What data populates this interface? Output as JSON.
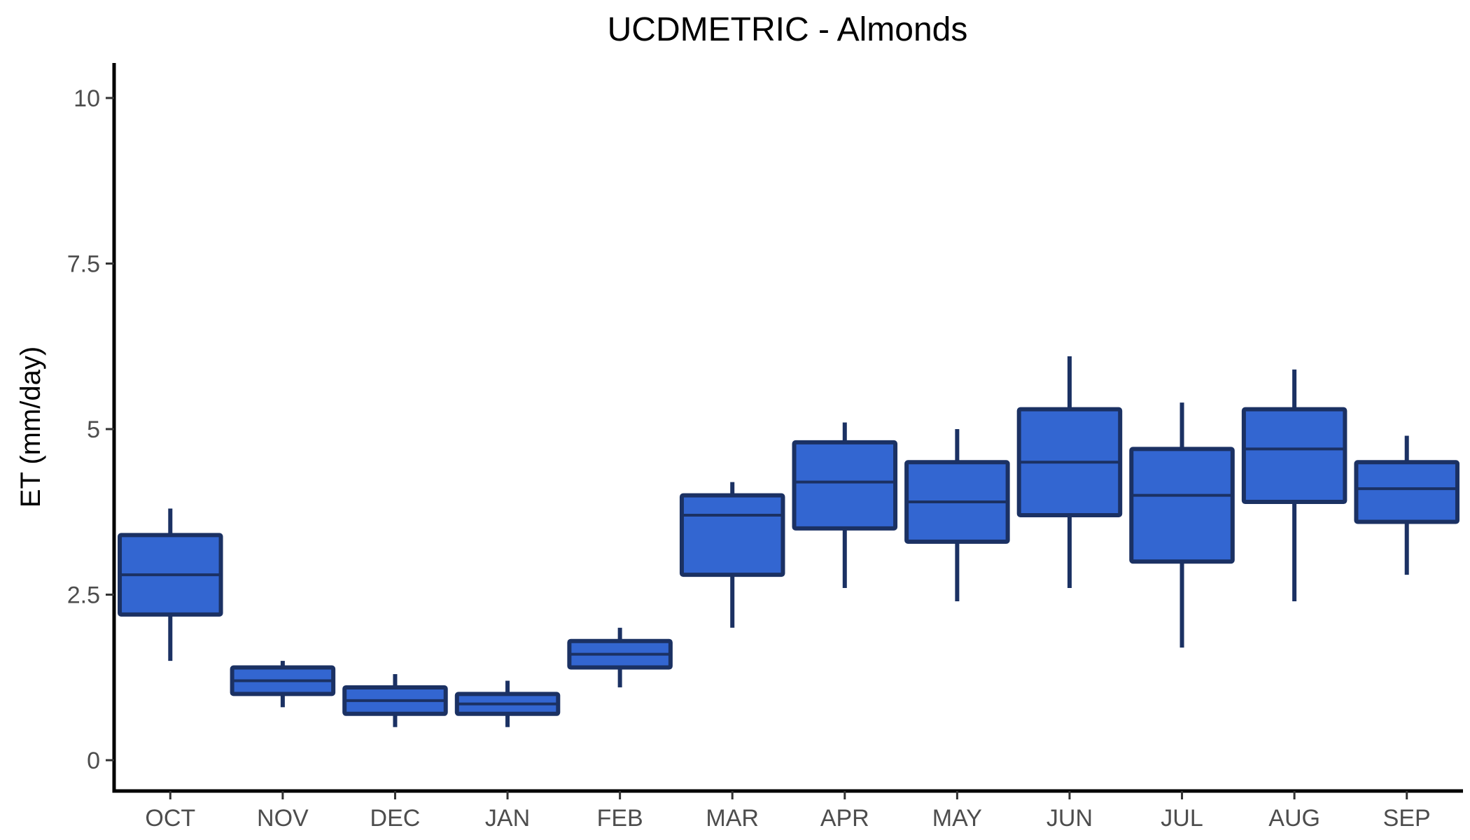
{
  "chart_data": {
    "type": "boxplot",
    "title": "UCDMETRIC - Almonds",
    "xlabel": "",
    "ylabel": "ET (mm/day)",
    "ylim": [
      -0.5,
      10.5
    ],
    "yticks": [
      0,
      2.5,
      5,
      7.5,
      10
    ],
    "ytick_labels": [
      "0",
      "2.5",
      "5",
      "7.5",
      "10"
    ],
    "categories": [
      "OCT",
      "NOV",
      "DEC",
      "JAN",
      "FEB",
      "MAR",
      "APR",
      "MAY",
      "JUN",
      "JUL",
      "AUG",
      "SEP"
    ],
    "boxes": [
      {
        "min": 1.5,
        "q1": 2.2,
        "median": 2.8,
        "q3": 3.4,
        "max": 3.8
      },
      {
        "min": 0.8,
        "q1": 1.0,
        "median": 1.2,
        "q3": 1.4,
        "max": 1.5
      },
      {
        "min": 0.5,
        "q1": 0.7,
        "median": 0.9,
        "q3": 1.1,
        "max": 1.3
      },
      {
        "min": 0.5,
        "q1": 0.7,
        "median": 0.85,
        "q3": 1.0,
        "max": 1.2
      },
      {
        "min": 1.1,
        "q1": 1.4,
        "median": 1.6,
        "q3": 1.8,
        "max": 2.0
      },
      {
        "min": 2.0,
        "q1": 2.8,
        "median": 3.7,
        "q3": 4.0,
        "max": 4.2
      },
      {
        "min": 2.6,
        "q1": 3.5,
        "median": 4.2,
        "q3": 4.8,
        "max": 5.1
      },
      {
        "min": 2.4,
        "q1": 3.3,
        "median": 3.9,
        "q3": 4.5,
        "max": 5.0
      },
      {
        "min": 2.6,
        "q1": 3.7,
        "median": 4.5,
        "q3": 5.3,
        "max": 6.1
      },
      {
        "min": 1.7,
        "q1": 3.0,
        "median": 4.0,
        "q3": 4.7,
        "max": 5.4
      },
      {
        "min": 2.4,
        "q1": 3.9,
        "median": 4.7,
        "q3": 5.3,
        "max": 5.9
      },
      {
        "min": 2.8,
        "q1": 3.6,
        "median": 4.1,
        "q3": 4.5,
        "max": 4.9
      }
    ],
    "grid": false,
    "legend": "none",
    "colors": {
      "box_fill": "#3366d1",
      "box_stroke": "#1b3163",
      "axis": "#000000",
      "tick_text": "#4d4d4d"
    }
  }
}
